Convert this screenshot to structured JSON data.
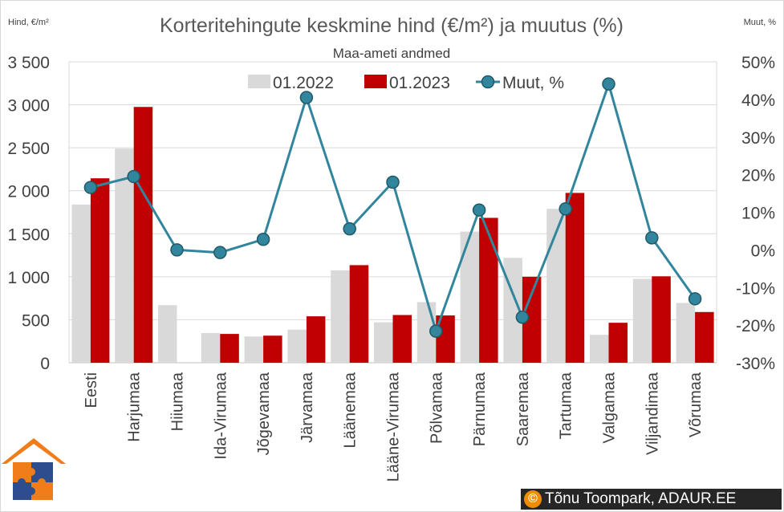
{
  "chart_data": {
    "type": "bar",
    "title": "Korteritehingute keskmine hind (€/m²) ja muutus (%)",
    "subtitle": "Maa-ameti andmed",
    "ylabel": "Hind, €/m²",
    "y2label": "Muut, %",
    "ylim": [
      0,
      3500
    ],
    "y2lim": [
      -30,
      50
    ],
    "yticks": [
      0,
      500,
      1000,
      1500,
      2000,
      2500,
      3000,
      3500
    ],
    "ytick_labels": [
      "0",
      "500",
      "1 000",
      "1 500",
      "2 000",
      "2 500",
      "3 000",
      "3 500"
    ],
    "y2ticks": [
      -30,
      -20,
      -10,
      0,
      10,
      20,
      30,
      40,
      50
    ],
    "y2tick_labels": [
      "-30%",
      "-20%",
      "-10%",
      "0%",
      "10%",
      "20%",
      "30%",
      "40%",
      "50%"
    ],
    "categories": [
      "Eesti",
      "Harjumaa",
      "Hiiumaa",
      "Ida-Virumaa",
      "Jõgevamaa",
      "Järvamaa",
      "Läänemaa",
      "Lääne-Virumaa",
      "Põlvamaa",
      "Pärnumaa",
      "Saaremaa",
      "Tartumaa",
      "Valgamaa",
      "Viljandimaa",
      "Võrumaa"
    ],
    "series": [
      {
        "name": "01.2022",
        "kind": "bar",
        "axis": "left",
        "color": "#d9d9d9",
        "values": [
          1840,
          2490,
          670,
          345,
          305,
          385,
          1075,
          470,
          705,
          1525,
          1220,
          1790,
          325,
          975,
          695
        ]
      },
      {
        "name": "01.2023",
        "kind": "bar",
        "axis": "left",
        "color": "#c00000",
        "values": [
          2145,
          2975,
          0,
          335,
          315,
          540,
          1135,
          555,
          550,
          1685,
          1000,
          1975,
          465,
          1005,
          590
        ]
      },
      {
        "name": "Muut, %",
        "kind": "line",
        "axis": "right",
        "color": "#31859c",
        "values": [
          16.6,
          19.5,
          0,
          -0.7,
          2.8,
          40.5,
          5.6,
          18.0,
          -21.6,
          10.6,
          -17.9,
          10.9,
          44.1,
          3.2,
          -13.0
        ]
      }
    ],
    "legend_position": "top",
    "grid": true
  },
  "credit": {
    "icon": "©",
    "text": "Tõnu Toompark, ADAUR.EE"
  },
  "logo": {
    "name": "house-puzzle-logo",
    "colors": [
      "#f07d1a",
      "#2e4d8f"
    ]
  }
}
